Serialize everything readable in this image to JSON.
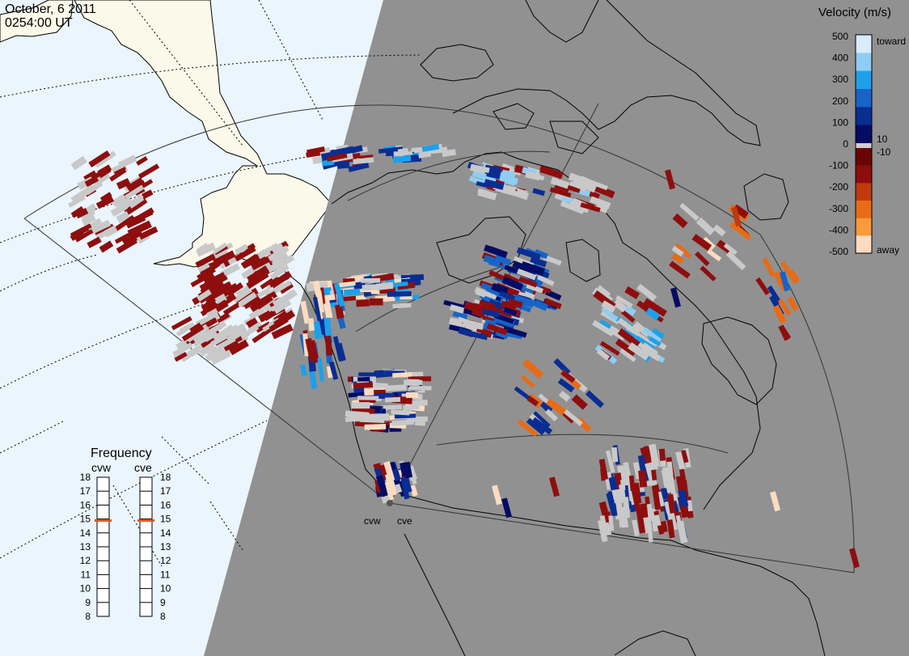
{
  "header": {
    "date": "October, 6 2011",
    "time": "0254:00 UT"
  },
  "colors": {
    "daylight": "#eaf5fd",
    "land_day": "#fbf9ea",
    "night": "#919191",
    "coast": "#000000",
    "no_data_gray": "#c9c9c9",
    "frequency_marker": "#e2521d"
  },
  "radars": [
    {
      "id": "cvw",
      "label": "cvw"
    },
    {
      "id": "cve",
      "label": "cve"
    }
  ],
  "velocity_scale": {
    "title": "Velocity (m/s)",
    "unit": "m/s",
    "ticks": [
      "500",
      "400",
      "300",
      "200",
      "100",
      "0",
      "-100",
      "-200",
      "-300",
      "-400",
      "-500"
    ],
    "inner_labels": [
      "10",
      "-10"
    ],
    "toward_label": "toward",
    "away_label": "away",
    "stops": [
      {
        "value": 500,
        "color": "#d8edfb"
      },
      {
        "value": 400,
        "color": "#8fcdf4"
      },
      {
        "value": 300,
        "color": "#1da0ea"
      },
      {
        "value": 200,
        "color": "#1764c6"
      },
      {
        "value": 100,
        "color": "#0a2d92"
      },
      {
        "value": 10,
        "color": "#040c63"
      },
      {
        "value": -10,
        "color": "#6a0505"
      },
      {
        "value": -100,
        "color": "#8e0e0e"
      },
      {
        "value": -200,
        "color": "#c2390e"
      },
      {
        "value": -300,
        "color": "#e86b16"
      },
      {
        "value": -400,
        "color": "#fb9a3a"
      },
      {
        "value": -500,
        "color": "#fbdcc2"
      }
    ]
  },
  "frequency_panel": {
    "title": "Frequency",
    "columns": [
      {
        "radar": "cvw",
        "label": "cvw",
        "value_mhz": 15
      },
      {
        "radar": "cve",
        "label": "cve",
        "value_mhz": 15
      }
    ],
    "ticks": [
      "18",
      "17",
      "16",
      "15",
      "14",
      "13",
      "12",
      "11",
      "10",
      "9",
      "8"
    ],
    "min": 8,
    "max": 18
  }
}
